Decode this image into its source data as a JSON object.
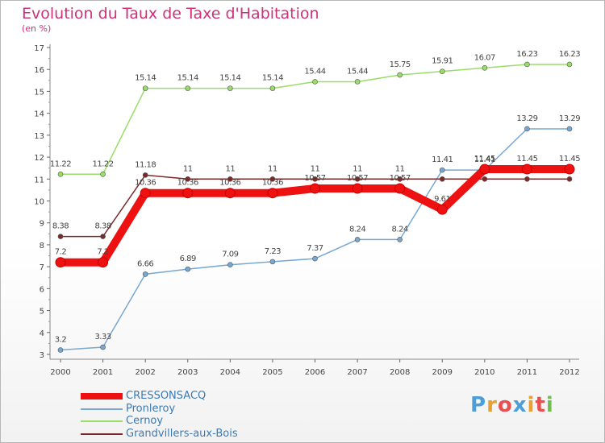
{
  "header": {
    "title": "Evolution du Taux de Taxe d'Habitation",
    "subtitle": "(en %)"
  },
  "chart_data": {
    "type": "line",
    "title": "Evolution du Taux de Taxe d'Habitation",
    "ylabel": "(en %)",
    "xlabel": "",
    "x": [
      "2000",
      "2001",
      "2002",
      "2003",
      "2004",
      "2005",
      "2006",
      "2007",
      "2008",
      "2009",
      "2010",
      "2011",
      "2012"
    ],
    "ylim": [
      3,
      17
    ],
    "yticks": [
      3,
      4,
      5,
      6,
      7,
      8,
      9,
      10,
      11,
      12,
      13,
      14,
      15,
      16,
      17
    ],
    "grid": false,
    "legend_position": "bottom-left",
    "series": [
      {
        "name": "CRESSONSACQ",
        "color": "#ee1111",
        "values": [
          7.2,
          7.2,
          10.36,
          10.36,
          10.36,
          10.36,
          10.57,
          10.57,
          10.57,
          9.61,
          11.45,
          11.45,
          11.45
        ],
        "labels": [
          "7.2",
          "7.2",
          "10.36",
          "10.36",
          "10.36",
          "10.36",
          "10.57",
          "10.57",
          "10.57",
          "9.61",
          "11.45",
          "11.45",
          "11.45"
        ]
      },
      {
        "name": "Pronleroy",
        "color": "#77a8d2",
        "values": [
          3.2,
          3.33,
          6.66,
          6.89,
          7.09,
          7.23,
          7.37,
          8.24,
          8.24,
          11.41,
          11.41,
          13.29,
          13.29
        ],
        "labels": [
          "3.2",
          "3.33",
          "6.66",
          "6.89",
          "7.09",
          "7.23",
          "7.37",
          "8.24",
          "8.24",
          "11.41",
          "11.41",
          "13.29",
          "13.29"
        ]
      },
      {
        "name": "Cernoy",
        "color": "#99dd66",
        "values": [
          11.22,
          11.22,
          15.14,
          15.14,
          15.14,
          15.14,
          15.44,
          15.44,
          15.75,
          15.91,
          16.07,
          16.23,
          16.23
        ],
        "labels": [
          "11.22",
          "11.22",
          "15.14",
          "15.14",
          "15.14",
          "15.14",
          "15.44",
          "15.44",
          "15.75",
          "15.91",
          "16.07",
          "16.23",
          "16.23"
        ]
      },
      {
        "name": "Grandvillers-aux-Bois",
        "color": "#7a2a2a",
        "values": [
          8.38,
          8.38,
          11.18,
          11,
          11,
          11,
          11,
          11,
          11,
          11,
          11,
          11,
          11
        ],
        "labels": [
          "8.38",
          "8.38",
          "11.18",
          "11",
          "11",
          "11",
          "11",
          "11",
          "11",
          "",
          "",
          "",
          ""
        ]
      }
    ]
  },
  "legend": {
    "items": [
      {
        "label": "CRESSONSACQ",
        "color": "#ee1111"
      },
      {
        "label": "Pronleroy",
        "color": "#77a8d2"
      },
      {
        "label": "Cernoy",
        "color": "#99dd66"
      },
      {
        "label": "Grandvillers-aux-Bois",
        "color": "#7a2a2a"
      }
    ]
  },
  "logo": {
    "letters": [
      "P",
      "r",
      "o",
      "x",
      "i",
      "t",
      "i"
    ],
    "colors": [
      "#4a9fd8",
      "#e8a030",
      "#e85050",
      "#4a9fd8",
      "#e8a030",
      "#e85050",
      "#70c050"
    ]
  }
}
